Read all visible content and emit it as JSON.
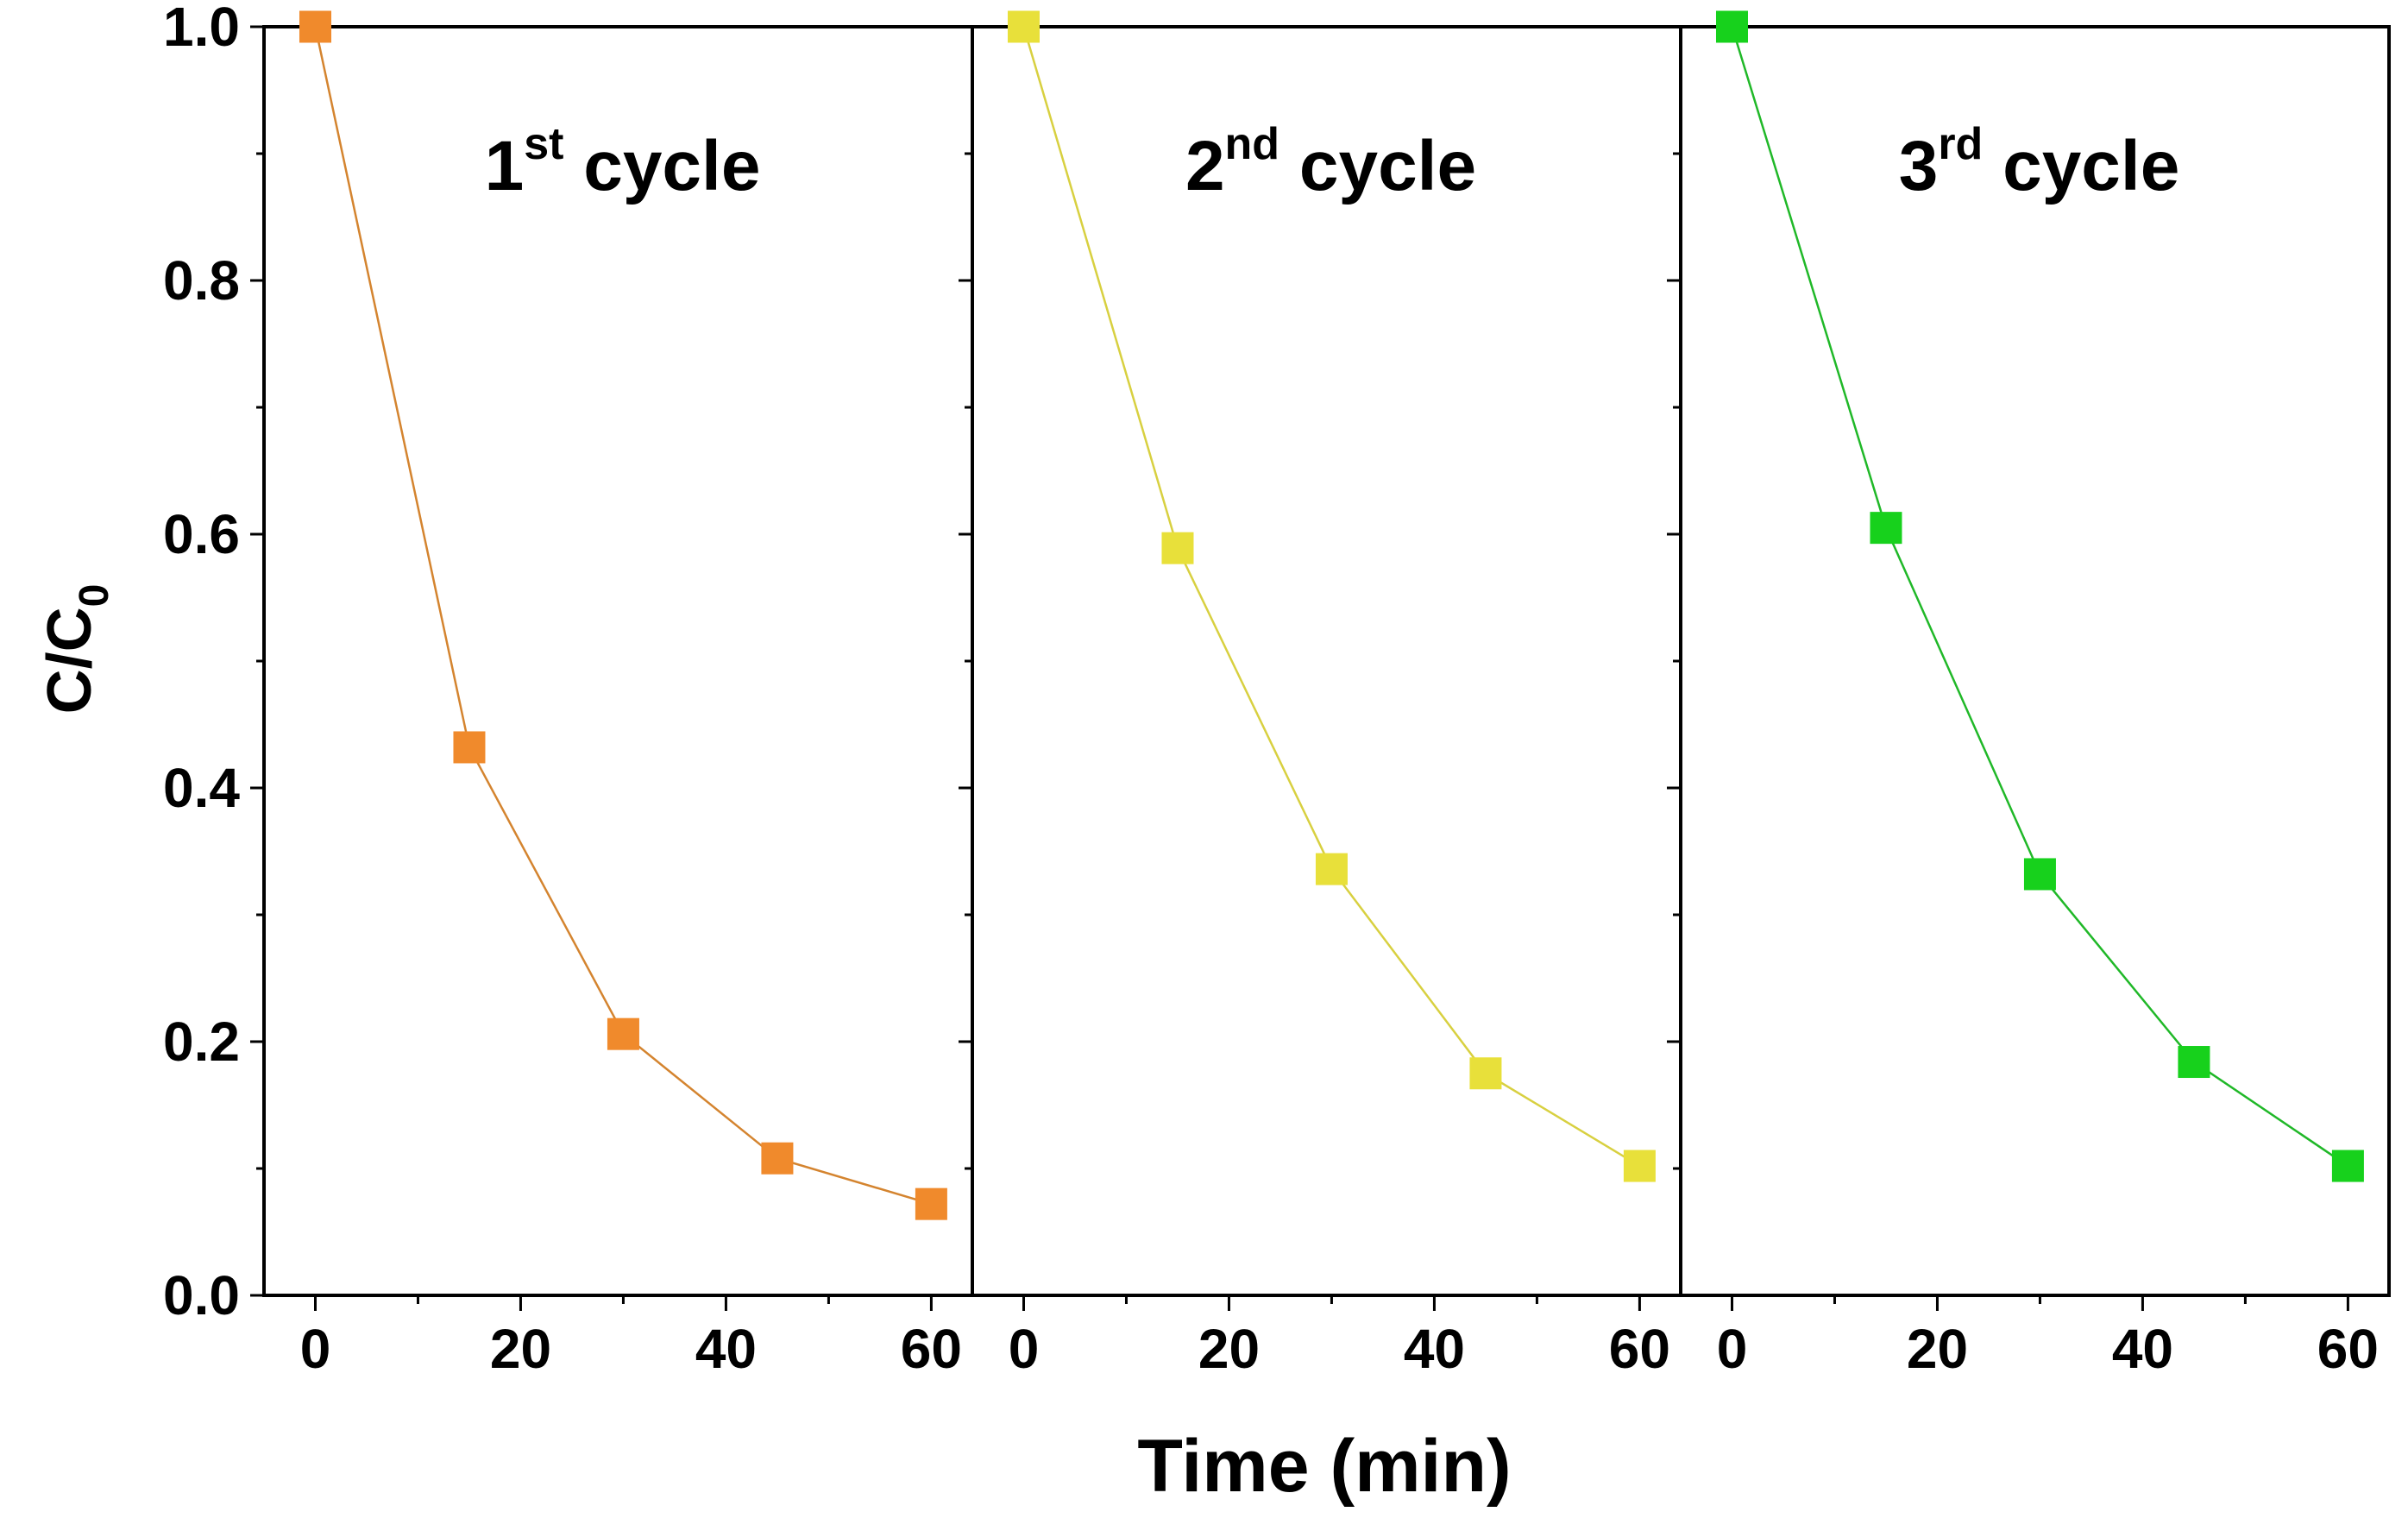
{
  "chart_data": {
    "type": "scatter",
    "ylabel_main": "C/C",
    "ylabel_sub": "0",
    "xlabel": "Time (min)",
    "ylim": [
      0,
      1.0
    ],
    "yticks": [
      "0.0",
      "0.2",
      "0.4",
      "0.6",
      "0.8",
      "1.0"
    ],
    "yticks_values": [
      0,
      0.2,
      0.4,
      0.6,
      0.8,
      1.0
    ],
    "xlim": [
      -5,
      64
    ],
    "xticks": [
      "0",
      "20",
      "40",
      "60"
    ],
    "xticks_values": [
      0,
      20,
      40,
      60
    ],
    "panels": [
      {
        "title_main": "1",
        "title_sup": "st",
        "title_rest": " cycle",
        "color": "#f08a2c",
        "line_color": "#d4842f",
        "x": [
          0,
          15,
          30,
          45,
          60
        ],
        "y": [
          1.0,
          0.432,
          0.206,
          0.108,
          0.072
        ]
      },
      {
        "title_main": "2",
        "title_sup": "nd",
        "title_rest": " cycle",
        "color": "#e8e03a",
        "line_color": "#d8d040",
        "x": [
          0,
          15,
          30,
          45,
          60
        ],
        "y": [
          1.0,
          0.589,
          0.336,
          0.175,
          0.102
        ]
      },
      {
        "title_main": "3",
        "title_sup": "rd",
        "title_rest": " cycle",
        "color": "#17d11c",
        "line_color": "#20b828",
        "x": [
          0,
          15,
          30,
          45,
          60
        ],
        "y": [
          1.0,
          0.605,
          0.332,
          0.184,
          0.102
        ]
      }
    ]
  }
}
